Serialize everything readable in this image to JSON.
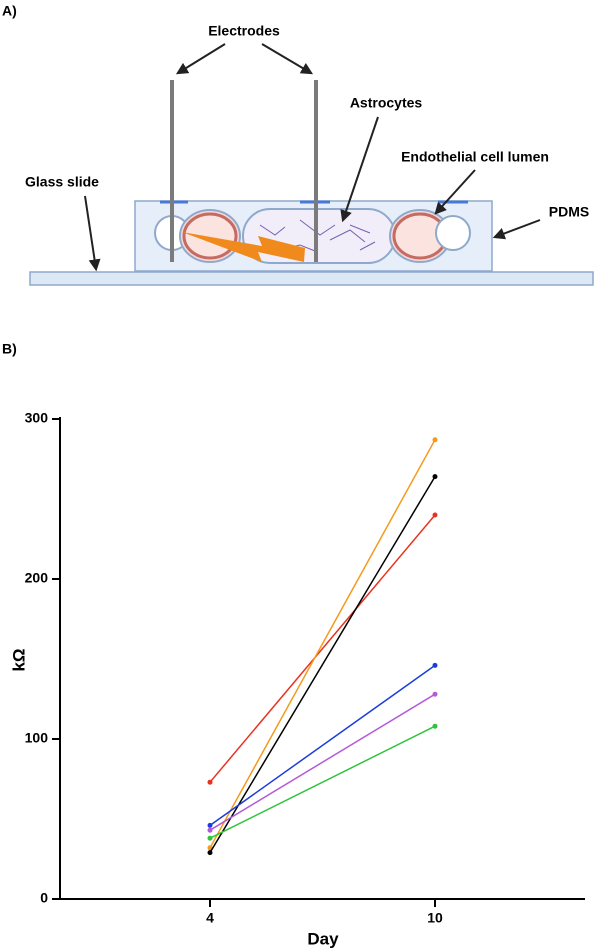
{
  "panel_a": {
    "label": "A)",
    "electrodes": "Electrodes",
    "astrocytes": "Astrocytes",
    "lumen": "Endothelial cell lumen",
    "glass": "Glass slide",
    "pdms": "PDMS"
  },
  "chart_data": {
    "type": "line",
    "title": "B)",
    "x_label": "Day",
    "y_label": "kΩ",
    "x": [
      4,
      10
    ],
    "xlim": [
      0,
      14
    ],
    "xticks": [
      4,
      10
    ],
    "ylim": [
      0,
      300
    ],
    "yticks": [
      0,
      100,
      200,
      300
    ],
    "series": [
      {
        "color": "#e8321e",
        "values": [
          73,
          240
        ]
      },
      {
        "color": "#f59a1c",
        "values": [
          32,
          287
        ]
      },
      {
        "color": "#000000",
        "values": [
          29,
          264
        ]
      },
      {
        "color": "#1b3ddb",
        "values": [
          46,
          146
        ]
      },
      {
        "color": "#b45ad8",
        "values": [
          43,
          128
        ]
      },
      {
        "color": "#2fc43a",
        "values": [
          38,
          108
        ]
      }
    ]
  }
}
